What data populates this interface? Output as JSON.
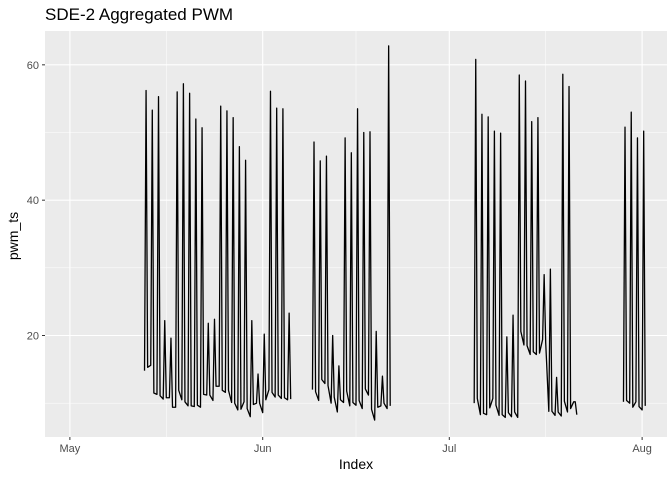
{
  "chart_data": {
    "type": "line",
    "title": "SDE-2  Aggregated PWM",
    "xlabel": "Index",
    "ylabel": "pwm_ts",
    "x_ticks": [
      {
        "label": "May",
        "date": "2015-05-01"
      },
      {
        "label": "Jun",
        "date": "2015-06-01"
      },
      {
        "label": "Jul",
        "date": "2015-07-01"
      },
      {
        "label": "Aug",
        "date": "2015-08-01"
      }
    ],
    "y_ticks": [
      20,
      40,
      60
    ],
    "xlim": [
      "2015-04-27",
      "2015-08-05"
    ],
    "ylim": [
      5,
      65
    ],
    "grid": true,
    "background": "#ebebeb",
    "grid_color": "#ffffff",
    "line_color": "#000000",
    "series": [
      {
        "segments": [
          [
            [
              "2015-05-13T00:00",
              14.8
            ],
            [
              "2015-05-13T06:00",
              56.2
            ],
            [
              "2015-05-13T12:00",
              15.3
            ],
            [
              "2015-05-14T00:00",
              15.6
            ],
            [
              "2015-05-14T06:00",
              53.3
            ],
            [
              "2015-05-14T12:00",
              11.5
            ],
            [
              "2015-05-15T00:00",
              11.3
            ],
            [
              "2015-05-15T06:00",
              55.3
            ],
            [
              "2015-05-15T12:00",
              11.1
            ],
            [
              "2015-05-16T00:00",
              10.6
            ],
            [
              "2015-05-16T06:00",
              22.2
            ],
            [
              "2015-05-16T12:00",
              10.8
            ],
            [
              "2015-05-17T00:00",
              10.8
            ],
            [
              "2015-05-17T06:00",
              19.6
            ],
            [
              "2015-05-17T12:00",
              9.4
            ],
            [
              "2015-05-18T00:00",
              9.4
            ],
            [
              "2015-05-18T06:00",
              56.0
            ],
            [
              "2015-05-18T12:00",
              11.9
            ],
            [
              "2015-05-19T00:00",
              10.5
            ],
            [
              "2015-05-19T06:00",
              57.2
            ],
            [
              "2015-05-19T12:00",
              10.2
            ],
            [
              "2015-05-20T00:00",
              9.6
            ],
            [
              "2015-05-20T06:00",
              55.8
            ],
            [
              "2015-05-20T12:00",
              9.6
            ],
            [
              "2015-05-21T00:00",
              9.5
            ],
            [
              "2015-05-21T06:00",
              52.0
            ],
            [
              "2015-05-21T12:00",
              9.7
            ],
            [
              "2015-05-22T00:00",
              9.4
            ],
            [
              "2015-05-22T06:00",
              50.7
            ],
            [
              "2015-05-22T12:00",
              11.3
            ],
            [
              "2015-05-23T00:00",
              11.2
            ],
            [
              "2015-05-23T06:00",
              21.8
            ],
            [
              "2015-05-23T12:00",
              11.2
            ],
            [
              "2015-05-24T00:00",
              10.4
            ],
            [
              "2015-05-24T06:00",
              22.4
            ],
            [
              "2015-05-24T12:00",
              12.5
            ],
            [
              "2015-05-25T00:00",
              12.5
            ],
            [
              "2015-05-25T06:00",
              53.9
            ],
            [
              "2015-05-25T12:00",
              11.9
            ],
            [
              "2015-05-26T00:00",
              11.6
            ],
            [
              "2015-05-26T06:00",
              53.2
            ],
            [
              "2015-05-26T12:00",
              11.9
            ],
            [
              "2015-05-27T00:00",
              10.1
            ],
            [
              "2015-05-27T06:00",
              52.2
            ],
            [
              "2015-05-27T12:00",
              10.0
            ],
            [
              "2015-05-28T00:00",
              9.0
            ],
            [
              "2015-05-28T06:00",
              47.9
            ],
            [
              "2015-05-28T12:00",
              9.1
            ],
            [
              "2015-05-29T00:00",
              10.2
            ],
            [
              "2015-05-29T06:00",
              45.9
            ],
            [
              "2015-05-29T12:00",
              9.2
            ],
            [
              "2015-05-30T00:00",
              8.0
            ],
            [
              "2015-05-30T06:00",
              22.2
            ],
            [
              "2015-05-30T12:00",
              9.8
            ],
            [
              "2015-05-31T00:00",
              10.0
            ],
            [
              "2015-05-31T06:00",
              14.3
            ],
            [
              "2015-05-31T12:00",
              10.0
            ],
            [
              "2015-06-01T00:00",
              8.6
            ],
            [
              "2015-06-01T06:00",
              20.2
            ],
            [
              "2015-06-01T12:00",
              10.5
            ],
            [
              "2015-06-02T00:00",
              12.0
            ],
            [
              "2015-06-02T06:00",
              56.1
            ],
            [
              "2015-06-02T12:00",
              11.6
            ],
            [
              "2015-06-03T00:00",
              10.9
            ],
            [
              "2015-06-03T06:00",
              53.6
            ],
            [
              "2015-06-03T12:00",
              11.2
            ],
            [
              "2015-06-04T00:00",
              10.7
            ],
            [
              "2015-06-04T06:00",
              53.5
            ],
            [
              "2015-06-04T12:00",
              10.8
            ],
            [
              "2015-06-05T00:00",
              10.5
            ],
            [
              "2015-06-05T06:00",
              23.3
            ],
            [
              "2015-06-05T12:00",
              10.6
            ]
          ],
          [
            [
              "2015-06-09T00:00",
              12.0
            ],
            [
              "2015-06-09T06:00",
              48.6
            ],
            [
              "2015-06-09T12:00",
              11.7
            ],
            [
              "2015-06-10T00:00",
              10.4
            ],
            [
              "2015-06-10T06:00",
              45.8
            ],
            [
              "2015-06-10T12:00",
              13.5
            ],
            [
              "2015-06-11T00:00",
              12.9
            ],
            [
              "2015-06-11T06:00",
              46.5
            ],
            [
              "2015-06-11T12:00",
              12.6
            ],
            [
              "2015-06-12T00:00",
              10.0
            ],
            [
              "2015-06-12T06:00",
              20.0
            ],
            [
              "2015-06-12T12:00",
              10.9
            ],
            [
              "2015-06-13T00:00",
              8.7
            ],
            [
              "2015-06-13T06:00",
              15.5
            ],
            [
              "2015-06-13T12:00",
              10.5
            ],
            [
              "2015-06-14T00:00",
              10.1
            ],
            [
              "2015-06-14T06:00",
              49.2
            ],
            [
              "2015-06-14T12:00",
              11.8
            ],
            [
              "2015-06-15T00:00",
              9.6
            ],
            [
              "2015-06-15T06:00",
              47.0
            ],
            [
              "2015-06-15T12:00",
              10.1
            ],
            [
              "2015-06-16T00:00",
              9.7
            ],
            [
              "2015-06-16T06:00",
              53.5
            ],
            [
              "2015-06-16T12:00",
              10.4
            ],
            [
              "2015-06-17T00:00",
              9.2
            ],
            [
              "2015-06-17T06:00",
              50.0
            ],
            [
              "2015-06-17T12:00",
              12.1
            ],
            [
              "2015-06-18T00:00",
              11.2
            ],
            [
              "2015-06-18T06:00",
              50.1
            ],
            [
              "2015-06-18T12:00",
              9.1
            ],
            [
              "2015-06-19T00:00",
              7.5
            ],
            [
              "2015-06-19T06:00",
              20.6
            ],
            [
              "2015-06-19T12:00",
              9.4
            ],
            [
              "2015-06-20T00:00",
              9.6
            ],
            [
              "2015-06-20T06:00",
              14.0
            ],
            [
              "2015-06-20T12:00",
              10.0
            ],
            [
              "2015-06-21T00:00",
              9.2
            ],
            [
              "2015-06-21T06:00",
              62.8
            ],
            [
              "2015-06-21T12:00",
              9.6
            ]
          ],
          [
            [
              "2015-07-05T00:00",
              10.0
            ],
            [
              "2015-07-05T06:00",
              60.8
            ],
            [
              "2015-07-05T12:00",
              10.7
            ],
            [
              "2015-07-06T00:00",
              8.3
            ],
            [
              "2015-07-06T06:00",
              52.7
            ],
            [
              "2015-07-06T12:00",
              8.5
            ],
            [
              "2015-07-07T00:00",
              8.3
            ],
            [
              "2015-07-07T06:00",
              52.3
            ],
            [
              "2015-07-07T12:00",
              9.3
            ],
            [
              "2015-07-08T00:00",
              10.7
            ],
            [
              "2015-07-08T06:00",
              50.2
            ],
            [
              "2015-07-08T12:00",
              9.7
            ],
            [
              "2015-07-09T00:00",
              8.2
            ],
            [
              "2015-07-09T06:00",
              49.9
            ],
            [
              "2015-07-09T12:00",
              8.3
            ],
            [
              "2015-07-10T00:00",
              7.9
            ],
            [
              "2015-07-10T06:00",
              19.8
            ],
            [
              "2015-07-10T12:00",
              8.6
            ],
            [
              "2015-07-11T00:00",
              8.0
            ],
            [
              "2015-07-11T06:00",
              23.0
            ],
            [
              "2015-07-11T12:00",
              8.7
            ],
            [
              "2015-07-12T00:00",
              7.9
            ],
            [
              "2015-07-12T06:00",
              58.5
            ],
            [
              "2015-07-12T12:00",
              20.6
            ],
            [
              "2015-07-13T00:00",
              18.6
            ],
            [
              "2015-07-13T06:00",
              57.6
            ],
            [
              "2015-07-13T12:00",
              18.5
            ],
            [
              "2015-07-14T00:00",
              17.2
            ],
            [
              "2015-07-14T06:00",
              51.6
            ],
            [
              "2015-07-14T12:00",
              17.6
            ],
            [
              "2015-07-15T00:00",
              17.2
            ],
            [
              "2015-07-15T06:00",
              52.2
            ],
            [
              "2015-07-15T12:00",
              17.4
            ],
            [
              "2015-07-16T00:00",
              19.4
            ],
            [
              "2015-07-16T06:00",
              29.0
            ],
            [
              "2015-07-16T12:00",
              18.9
            ],
            [
              "2015-07-17T00:00",
              8.8
            ],
            [
              "2015-07-17T06:00",
              29.8
            ],
            [
              "2015-07-17T12:00",
              8.8
            ],
            [
              "2015-07-18T00:00",
              8.2
            ],
            [
              "2015-07-18T06:00",
              13.8
            ],
            [
              "2015-07-18T12:00",
              8.7
            ],
            [
              "2015-07-19T00:00",
              8.1
            ],
            [
              "2015-07-19T06:00",
              58.6
            ],
            [
              "2015-07-19T12:00",
              10.3
            ],
            [
              "2015-07-20T00:00",
              8.7
            ],
            [
              "2015-07-20T06:00",
              56.8
            ],
            [
              "2015-07-20T12:00",
              9.2
            ],
            [
              "2015-07-21T00:00",
              10.2
            ],
            [
              "2015-07-21T06:00",
              10.2
            ],
            [
              "2015-07-21T12:00",
              8.3
            ]
          ],
          [
            [
              "2015-07-29T00:00",
              10.2
            ],
            [
              "2015-07-29T06:00",
              50.8
            ],
            [
              "2015-07-29T12:00",
              10.4
            ],
            [
              "2015-07-30T00:00",
              10.0
            ],
            [
              "2015-07-30T06:00",
              53.0
            ],
            [
              "2015-07-30T12:00",
              9.4
            ],
            [
              "2015-07-31T00:00",
              10.2
            ],
            [
              "2015-07-31T06:00",
              49.2
            ],
            [
              "2015-07-31T12:00",
              9.5
            ],
            [
              "2015-08-01T00:00",
              9.0
            ],
            [
              "2015-08-01T06:00",
              50.2
            ],
            [
              "2015-08-01T12:00",
              9.6
            ]
          ]
        ]
      }
    ]
  }
}
